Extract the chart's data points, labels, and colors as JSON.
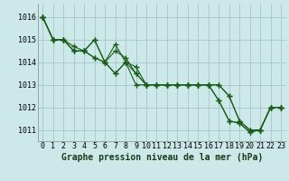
{
  "title": "Graphe pression niveau de la mer (hPa)",
  "background_color": "#cce8e8",
  "grid_color": "#aacccc",
  "line_color": "#1a5c1a",
  "marker_color": "#1a5c1a",
  "xlim": [
    -0.5,
    23.5
  ],
  "ylim": [
    1010.5,
    1016.6
  ],
  "yticks": [
    1011,
    1012,
    1013,
    1014,
    1015,
    1016
  ],
  "xticks": [
    0,
    1,
    2,
    3,
    4,
    5,
    6,
    7,
    8,
    9,
    10,
    11,
    12,
    13,
    14,
    15,
    16,
    17,
    18,
    19,
    20,
    21,
    22,
    23
  ],
  "series": [
    [
      1016.0,
      1015.0,
      1015.0,
      1014.7,
      1014.5,
      1015.0,
      1014.0,
      1014.5,
      1014.2,
      1013.5,
      1013.0,
      1013.0,
      1013.0,
      1013.0,
      1013.0,
      1013.0,
      1013.0,
      1013.0,
      1012.5,
      1011.4,
      1011.0,
      1011.0,
      1012.0,
      1012.0
    ],
    [
      1016.0,
      1015.0,
      1015.0,
      1014.5,
      1014.5,
      1015.0,
      1014.0,
      1014.8,
      1014.0,
      1013.8,
      1013.0,
      1013.0,
      1013.0,
      1013.0,
      1013.0,
      1013.0,
      1013.0,
      1013.0,
      1012.5,
      1011.4,
      1011.0,
      1011.0,
      1012.0,
      1012.0
    ],
    [
      1016.0,
      1015.0,
      1015.0,
      1014.5,
      1014.5,
      1014.2,
      1014.0,
      1013.5,
      1014.0,
      1013.5,
      1013.0,
      1013.0,
      1013.0,
      1013.0,
      1013.0,
      1013.0,
      1013.0,
      1012.3,
      1011.4,
      1011.3,
      1010.9,
      1011.0,
      1012.0,
      1012.0
    ],
    [
      1016.0,
      1015.0,
      1015.0,
      1014.5,
      1014.5,
      1014.2,
      1014.0,
      1013.5,
      1014.0,
      1013.0,
      1013.0,
      1013.0,
      1013.0,
      1013.0,
      1013.0,
      1013.0,
      1013.0,
      1012.3,
      1011.4,
      1011.3,
      1010.9,
      1011.0,
      1012.0,
      1012.0
    ]
  ],
  "title_fontsize": 7,
  "tick_fontsize": 6
}
